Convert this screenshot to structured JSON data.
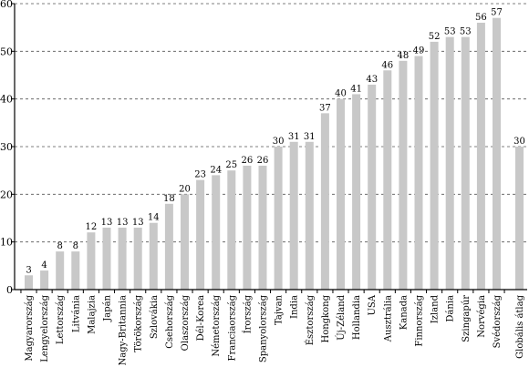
{
  "chart_data": {
    "type": "bar",
    "categories": [
      "Magyarország",
      "Lengyelország",
      "Lettország",
      "Litvánia",
      "Malajzia",
      "Japán",
      "Nagy-Britannia",
      "Törökország",
      "Szlovákia",
      "Csehország",
      "Olaszország",
      "Dél-Korea",
      "Németország",
      "Franciaország",
      "Írország",
      "Spanyolország",
      "Tajvan",
      "India",
      "Észtország",
      "Hongkong",
      "Új-Zéland",
      "Hollandia",
      "USA",
      "Ausztrália",
      "Kanada",
      "Finnország",
      "Izland",
      "Dánia",
      "Szingapúr",
      "Norvégia",
      "Svédország",
      "Globális átlag"
    ],
    "values": [
      3,
      4,
      8,
      8,
      12,
      13,
      13,
      13,
      14,
      18,
      20,
      23,
      24,
      25,
      26,
      26,
      30,
      31,
      31,
      37,
      40,
      41,
      43,
      46,
      48,
      49,
      52,
      53,
      53,
      56,
      57,
      30
    ],
    "data_labels": [
      "3",
      "4",
      "8",
      "8",
      "12",
      "13",
      "13",
      "13",
      "14",
      "18",
      "20",
      "23",
      "24",
      "25",
      "26",
      "26",
      "30",
      "31",
      "31",
      "37",
      "40",
      "41",
      "43",
      "46",
      "48",
      "49",
      "52",
      "53",
      "53",
      "56",
      "57",
      "30"
    ],
    "ylim": [
      0,
      60
    ],
    "yticks": [
      "0",
      "10",
      "20",
      "30",
      "40",
      "50",
      "60"
    ],
    "grid": "horizontal dashed",
    "bar_color": "#c8c8c8",
    "title": "",
    "xlabel": "",
    "ylabel": ""
  }
}
